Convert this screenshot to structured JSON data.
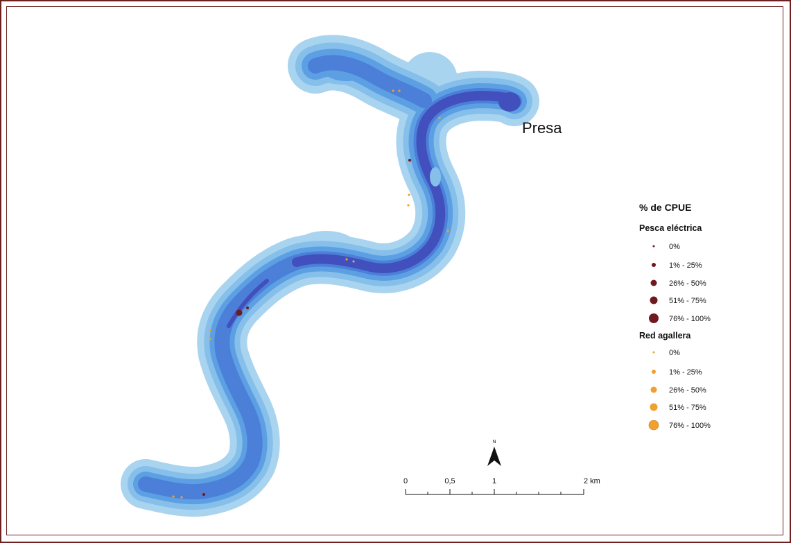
{
  "map": {
    "dam_label": "Presa"
  },
  "legend": {
    "title": "% de CPUE",
    "groups": [
      {
        "name": "Pesca eléctrica",
        "color": "#6e1a1f",
        "classes": [
          "0%",
          "1% - 25%",
          "26% - 50%",
          "51% - 75%",
          "76% - 100%"
        ]
      },
      {
        "name": "Red agallera",
        "color": "#f0a030",
        "classes": [
          "0%",
          "1% - 25%",
          "26% - 50%",
          "51% - 75%",
          "76% - 100%"
        ]
      }
    ]
  },
  "north_arrow": {
    "label": "N"
  },
  "scale_bar": {
    "labels": [
      "0",
      "0,5",
      "1",
      "2 km"
    ]
  },
  "depth_colors": [
    "#a9d4f0",
    "#86bfea",
    "#5c9fe3",
    "#4b7fd8",
    "#4150bd"
  ]
}
